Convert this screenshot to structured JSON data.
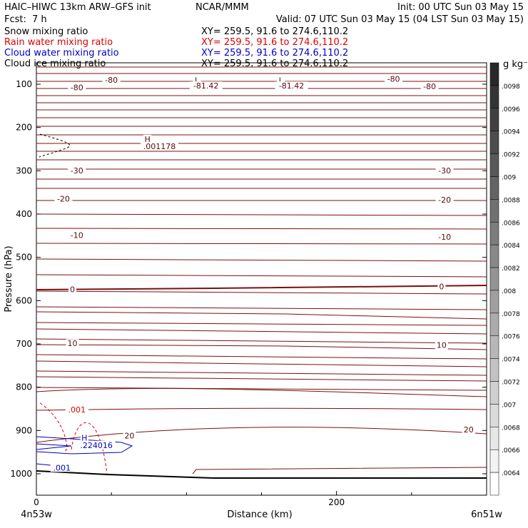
{
  "header": {
    "title": "HAIC–HIWC 13km ARW–GFS init",
    "org": "NCAR/MMM",
    "init": "Init: 00 UTC Sun 03 May 15",
    "fcst_label": "Fcst:",
    "fcst_value": "7 h",
    "valid": "Valid: 07 UTC Sun 03 May 15 (04 LST Sun 03 May 15)"
  },
  "legend": [
    {
      "label": "Snow mixing ratio",
      "xy": "XY= 259.5, 91.6 to 274.6,110.2",
      "color": "#000000"
    },
    {
      "label": "Rain water mixing ratio",
      "xy": "XY= 259.5, 91.6 to 274.6,110.2",
      "color": "#e00000"
    },
    {
      "label": "Cloud water mixing ratio",
      "xy": "XY= 259.5, 91.6 to 274.6,110.2",
      "color": "#0000c0"
    },
    {
      "label": "Cloud ice mixing ratio",
      "xy": "XY= 259.5, 91.6 to 274.6,110.2",
      "color": "#000000"
    }
  ],
  "axes": {
    "ylabel": "Pressure (hPa)",
    "xlabel": "Distance (km)",
    "x_left_label": "4n53w",
    "x_right_label": "6n51w"
  },
  "colorbar": {
    "units": "g kg⁻¹",
    "ticks": [
      ".0098",
      ".0096",
      ".0094",
      ".0092",
      ".009",
      ".0088",
      ".0086",
      ".0084",
      ".0082",
      ".008",
      ".0078",
      ".0076",
      ".0074",
      ".0072",
      ".007",
      ".0068",
      ".0066",
      ".0064"
    ]
  },
  "colors": {
    "temperature": "#7a1010",
    "rain": "#e00000",
    "cloud_water": "#0000c0",
    "terrain": "#000000"
  },
  "chart_data": {
    "type": "contour",
    "ylim": [
      1050,
      50
    ],
    "xlim": [
      0,
      300
    ],
    "yticks": [
      100,
      200,
      300,
      400,
      500,
      600,
      700,
      800,
      900,
      1000
    ],
    "xticks": [
      0,
      200
    ],
    "temperature_labels": [
      {
        "text": "-80",
        "x": 50,
        "p": 93
      },
      {
        "text": "-80",
        "x": 27,
        "p": 111
      },
      {
        "text": "-80",
        "x": 238,
        "p": 91
      },
      {
        "text": "-80",
        "x": 262,
        "p": 108
      },
      {
        "text": "L",
        "x": 107,
        "p": 94
      },
      {
        "text": "-81.42",
        "x": 113,
        "p": 107
      },
      {
        "text": "L",
        "x": 163,
        "p": 94
      },
      {
        "text": "-81.42",
        "x": 170,
        "p": 107
      },
      {
        "text": "H",
        "x": 74,
        "p": 230
      },
      {
        "text": ".001178",
        "x": 82,
        "p": 247
      },
      {
        "text": "-30",
        "x": 27,
        "p": 303
      },
      {
        "text": "-30",
        "x": 272,
        "p": 303
      },
      {
        "text": "-20",
        "x": 18,
        "p": 368
      },
      {
        "text": "-20",
        "x": 272,
        "p": 370
      },
      {
        "text": "-10",
        "x": 27,
        "p": 452
      },
      {
        "text": "-10",
        "x": 272,
        "p": 456
      },
      {
        "text": "0",
        "x": 24,
        "p": 577
      },
      {
        "text": "0",
        "x": 270,
        "p": 571
      },
      {
        "text": "10",
        "x": 24,
        "p": 702
      },
      {
        "text": "10",
        "x": 270,
        "p": 706
      },
      {
        "text": "20",
        "x": 62,
        "p": 915
      },
      {
        "text": "20",
        "x": 288,
        "p": 901
      }
    ],
    "rain_labels": [
      {
        "text": ".001",
        "x": 27,
        "p": 855
      }
    ],
    "cloud_water_labels": [
      {
        "text": "H",
        "x": 32,
        "p": 920
      },
      {
        "text": ".224016",
        "x": 40,
        "p": 937
      },
      {
        "text": ".001",
        "x": 17,
        "p": 989
      }
    ]
  }
}
